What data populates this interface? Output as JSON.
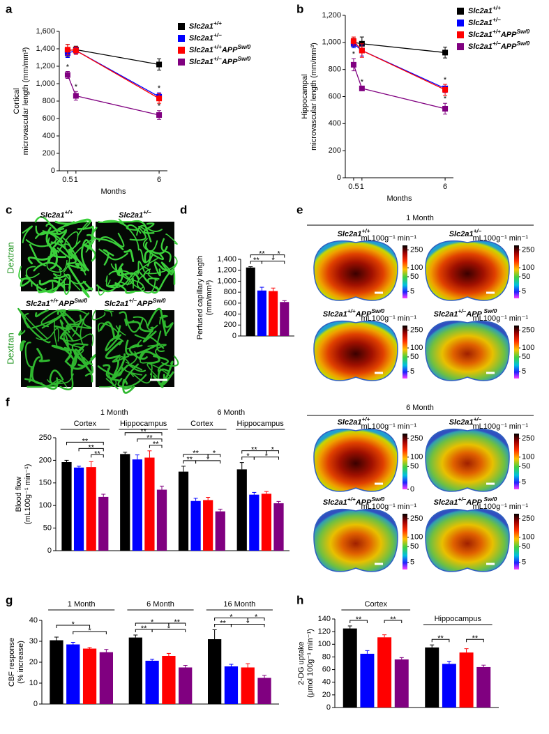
{
  "chart_data": [
    {
      "panel": "a",
      "type": "line",
      "ylabel": [
        "Cortical",
        "microvascular length (mm/mm³)"
      ],
      "xlabel": "Months",
      "x": [
        0.5,
        1,
        6
      ],
      "xlim": [
        0,
        6.5
      ],
      "xticks": [
        0.5,
        1,
        6
      ],
      "ylim": [
        0,
        1600
      ],
      "yticks": [
        0,
        200,
        400,
        600,
        800,
        {
          "value": 1000,
          "label": "1,000"
        },
        {
          "value": 1200,
          "label": "1,200"
        },
        {
          "value": 1400,
          "label": "1,400"
        },
        {
          "value": 1600,
          "label": "1,600"
        }
      ],
      "series": [
        {
          "name": "Slc2a1+/+",
          "color": "#000000",
          "values": [
            1380,
            1390,
            1220
          ],
          "errors": [
            70,
            40,
            65
          ]
        },
        {
          "name": "Slc2a1+/−",
          "color": "#0000ff",
          "values": [
            1350,
            1380,
            850
          ],
          "errors": [
            50,
            35,
            45
          ]
        },
        {
          "name": "Slc2a1+/+APPSw/0",
          "color": "#ff0000",
          "values": [
            1390,
            1380,
            830
          ],
          "errors": [
            60,
            45,
            55
          ]
        },
        {
          "name": "Slc2a1+/−APPSw/0",
          "color": "#800080",
          "values": [
            1100,
            860,
            640
          ],
          "errors": [
            40,
            50,
            50
          ]
        }
      ],
      "annotations": [
        {
          "text": "*",
          "series": 3,
          "index": 0
        },
        {
          "text": "*",
          "series": 3,
          "index": 1
        },
        {
          "text": "*",
          "series": 1,
          "index": 2
        },
        {
          "text": "*",
          "series": 3,
          "index": 2
        }
      ]
    },
    {
      "panel": "b",
      "type": "line",
      "ylabel": [
        "Hippocampal",
        "microvascular length (mm/mm³)"
      ],
      "xlabel": "Months",
      "x": [
        0.5,
        1,
        6
      ],
      "xlim": [
        0,
        6.5
      ],
      "xticks": [
        0.5,
        1,
        6
      ],
      "ylim": [
        0,
        1200
      ],
      "yticks": [
        0,
        200,
        400,
        600,
        800,
        {
          "value": 1000,
          "label": "1,000"
        },
        {
          "value": 1200,
          "label": "1,200"
        }
      ],
      "series": [
        {
          "name": "Slc2a1+/+",
          "color": "#000000",
          "values": [
            1000,
            990,
            925
          ],
          "errors": [
            30,
            50,
            40
          ]
        },
        {
          "name": "Slc2a1+/−",
          "color": "#0000ff",
          "values": [
            990,
            940,
            660
          ],
          "errors": [
            30,
            40,
            30
          ]
        },
        {
          "name": "Slc2a1+/+APPSw/0",
          "color": "#ff0000",
          "values": [
            1010,
            940,
            650
          ],
          "errors": [
            30,
            50,
            40
          ]
        },
        {
          "name": "Slc2a1+/−APPSw/0",
          "color": "#800080",
          "values": [
            835,
            660,
            510
          ],
          "errors": [
            45,
            15,
            40
          ]
        }
      ],
      "annotations": [
        {
          "text": "*",
          "series": 3,
          "index": 0
        },
        {
          "text": "*",
          "series": 3,
          "index": 1
        },
        {
          "text": "*",
          "series": 1,
          "index": 2
        },
        {
          "text": "*",
          "series": 3,
          "index": 2
        }
      ]
    },
    {
      "panel": "d",
      "type": "bar",
      "ylabel": [
        "Perfused capillary length",
        "(mm/mm³)"
      ],
      "categories": [
        null
      ],
      "ylim": [
        0,
        1400
      ],
      "yticks": [
        0,
        200,
        400,
        600,
        800,
        {
          "value": 1000,
          "label": "1,000"
        },
        {
          "value": 1200,
          "label": "1,200"
        },
        {
          "value": 1400,
          "label": "1,400"
        }
      ],
      "series": [
        {
          "color": "#000000",
          "values": [
            1250
          ],
          "errors": [
            15
          ]
        },
        {
          "color": "#0000ff",
          "values": [
            830
          ],
          "errors": [
            60
          ]
        },
        {
          "color": "#ff0000",
          "values": [
            820
          ],
          "errors": [
            55
          ]
        },
        {
          "color": "#800080",
          "values": [
            620
          ],
          "errors": [
            25
          ]
        }
      ],
      "brackets": [
        [
          [
            [
              0,
              2,
              "**"
            ],
            [
              2,
              3,
              "*"
            ]
          ],
          [
            [
              0,
              1,
              "**"
            ],
            [
              1,
              3,
              "*"
            ]
          ]
        ]
      ]
    },
    {
      "panel": "f",
      "type": "bar",
      "ylabel": [
        "Blood flow",
        "(mL100g⁻¹ min⁻¹)"
      ],
      "categories": [
        "Cortex",
        "Hippocampus",
        "Cortex",
        "Hippocampus"
      ],
      "supergroups": [
        {
          "label": "1 Month",
          "span": 2
        },
        {
          "label": "6 Month",
          "span": 2
        }
      ],
      "ylim": [
        0,
        250
      ],
      "yticks": [
        0,
        50,
        100,
        150,
        200,
        250
      ],
      "series": [
        {
          "color": "#000000",
          "values": [
            196,
            214,
            175,
            180
          ],
          "errors": [
            4,
            4,
            12,
            15
          ]
        },
        {
          "color": "#0000ff",
          "values": [
            184,
            202,
            110,
            124
          ],
          "errors": [
            3,
            10,
            6,
            5
          ]
        },
        {
          "color": "#ff0000",
          "values": [
            185,
            206,
            112,
            126
          ],
          "errors": [
            12,
            15,
            6,
            5
          ]
        },
        {
          "color": "#800080",
          "values": [
            119,
            135,
            87,
            105
          ],
          "errors": [
            6,
            8,
            5,
            4
          ]
        }
      ],
      "brackets": [
        [
          [
            [
              0,
              3,
              "**"
            ]
          ],
          [
            [
              1,
              3,
              "**"
            ]
          ],
          [
            [
              2,
              3,
              "**"
            ]
          ]
        ],
        [
          [
            [
              0,
              3,
              "**"
            ]
          ],
          [
            [
              1,
              3,
              "**"
            ]
          ],
          [
            [
              2,
              3,
              "**"
            ]
          ]
        ],
        [
          [
            [
              0,
              2,
              "**"
            ],
            [
              2,
              3,
              "*"
            ]
          ],
          [
            [
              0,
              1,
              "**"
            ],
            [
              1,
              3,
              "*"
            ]
          ]
        ],
        [
          [
            [
              0,
              2,
              "**"
            ],
            [
              2,
              3,
              "*"
            ]
          ],
          [
            [
              0,
              1,
              "*"
            ],
            [
              1,
              3,
              "*"
            ]
          ]
        ]
      ]
    },
    {
      "panel": "g",
      "type": "bar",
      "ylabel": [
        "CBF response",
        "(% increase)"
      ],
      "categories": [
        "1 Month",
        "6 Month",
        "16 Month"
      ],
      "ylim": [
        0,
        40
      ],
      "yticks": [
        0,
        10,
        20,
        30,
        40
      ],
      "series": [
        {
          "color": "#000000",
          "values": [
            30.5,
            31.8,
            31
          ],
          "errors": [
            1.5,
            1.2,
            4.5
          ]
        },
        {
          "color": "#0000ff",
          "values": [
            28.5,
            20.7,
            18
          ],
          "errors": [
            1,
            0.7,
            1
          ]
        },
        {
          "color": "#ff0000",
          "values": [
            26.5,
            23,
            17.5
          ],
          "errors": [
            0.5,
            1.2,
            1.8
          ]
        },
        {
          "color": "#800080",
          "values": [
            24.8,
            17.5,
            12.5
          ],
          "errors": [
            1.3,
            1,
            1.2
          ]
        }
      ],
      "brackets": [
        [
          [
            [
              0,
              2,
              "*"
            ]
          ],
          [
            [
              1,
              3,
              "*"
            ]
          ]
        ],
        [
          [
            [
              0,
              2,
              "*"
            ],
            [
              2,
              3,
              "**"
            ]
          ],
          [
            [
              0,
              1,
              "**"
            ],
            [
              1,
              3,
              "*"
            ]
          ]
        ],
        [
          [
            [
              0,
              2,
              "*"
            ],
            [
              2,
              3,
              "*"
            ]
          ],
          [
            [
              0,
              1,
              "**"
            ],
            [
              1,
              3,
              "*"
            ]
          ]
        ]
      ]
    },
    {
      "panel": "h",
      "type": "bar",
      "ylabel": [
        "2-DG uptake",
        "(μmol 100g⁻¹ min⁻¹)"
      ],
      "categories": [
        "Cortex",
        "Hippocampus"
      ],
      "ylim": [
        0,
        140
      ],
      "yticks": [
        0,
        20,
        40,
        60,
        80,
        100,
        120,
        140
      ],
      "series": [
        {
          "color": "#000000",
          "values": [
            125,
            95
          ],
          "errors": [
            4,
            4
          ]
        },
        {
          "color": "#0000ff",
          "values": [
            85,
            69
          ],
          "errors": [
            5,
            4
          ]
        },
        {
          "color": "#ff0000",
          "values": [
            111,
            87
          ],
          "errors": [
            4,
            6
          ]
        },
        {
          "color": "#800080",
          "values": [
            76,
            64
          ],
          "errors": [
            3,
            3
          ]
        }
      ],
      "brackets": [
        [
          [
            [
              0,
              1,
              "**"
            ],
            [
              2,
              3,
              "**"
            ]
          ]
        ],
        [
          [
            [
              0,
              1,
              "**"
            ],
            [
              2,
              3,
              "**"
            ]
          ]
        ]
      ]
    }
  ],
  "micrographs": {
    "panel": "c",
    "stain": "Dextran",
    "images": [
      "Slc2a1+/+",
      "Slc2a1+/–",
      "Slc2a1+/+APPSw/0",
      "Slc2a1+/–APPSw/0"
    ]
  },
  "perfusion_maps": {
    "panel": "e",
    "scale_label": "mL100g⁻¹ min⁻¹",
    "groups": [
      {
        "title": "1 Month",
        "images": [
          {
            "label": "Slc2a1+/+",
            "ticks": [
              250,
              100,
              50,
              5
            ]
          },
          {
            "label": "Slc2a1+/–",
            "ticks": [
              250,
              100,
              50,
              5
            ]
          },
          {
            "label": "Slc2a1+/+APPSw/0",
            "ticks": [
              250,
              100,
              50,
              5
            ]
          },
          {
            "label": "Slc2a1+/–APP Sw/0",
            "ticks": [
              250,
              100,
              50,
              5
            ]
          }
        ]
      },
      {
        "title": "6 Month",
        "images": [
          {
            "label": "Slc2a1+/+",
            "ticks": [
              250,
              100,
              50,
              0
            ]
          },
          {
            "label": "Slc2a1+/–",
            "ticks": [
              250,
              100,
              50,
              5
            ]
          },
          {
            "label": "Slc2a1+/+APPSw/0",
            "ticks": [
              250,
              100,
              50,
              5
            ]
          },
          {
            "label": "Slc2a1+/–APP Sw/0",
            "ticks": [
              250,
              100,
              50,
              5
            ]
          }
        ]
      }
    ]
  }
}
